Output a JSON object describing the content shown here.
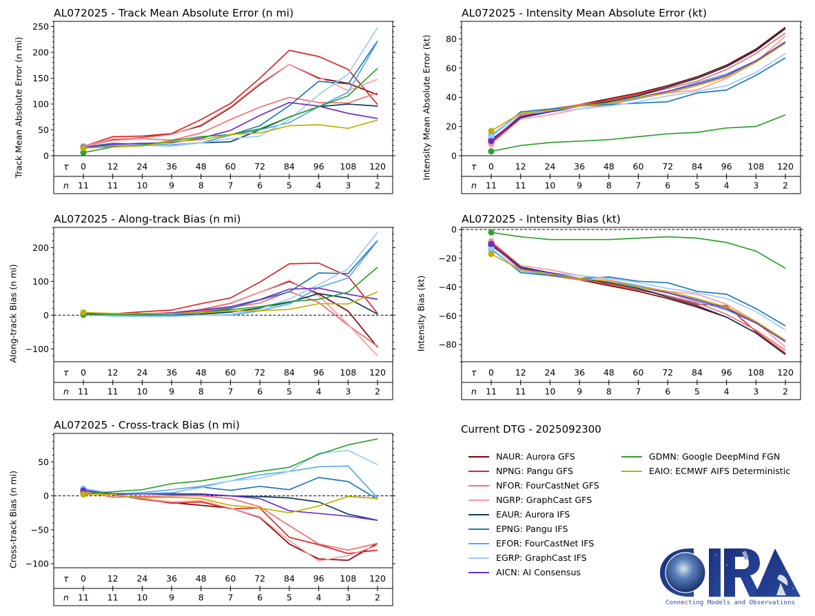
{
  "models": [
    {
      "code": "NAUR",
      "label": "NAUR: Aurora GFS",
      "color": "#7f0000"
    },
    {
      "code": "NPNG",
      "label": "NPNG: Pangu GFS",
      "color": "#d62728"
    },
    {
      "code": "NFOR",
      "label": "NFOR: FourCastNet GFS",
      "color": "#f46d6d"
    },
    {
      "code": "NGRP",
      "label": "NGRP: GraphCast GFS",
      "color": "#ff9999"
    },
    {
      "code": "EAUR",
      "label": "EAUR: Aurora IFS",
      "color": "#0b3c5d"
    },
    {
      "code": "EPNG",
      "label": "EPNG: Pangu IFS",
      "color": "#1f77b4"
    },
    {
      "code": "EFOR",
      "label": "EFOR: FourCastNet IFS",
      "color": "#56a8f0"
    },
    {
      "code": "EGRP",
      "label": "EGRP: GraphCast IFS",
      "color": "#9ccbfa"
    },
    {
      "code": "AICN",
      "label": "AICN: AI Consensus",
      "color": "#6a2fc9"
    },
    {
      "code": "GDMN",
      "label": "GDMN: Google DeepMind FGN",
      "color": "#2ca02c"
    },
    {
      "code": "EAIO",
      "label": "EAIO: ECMWF AIFS Deterministic",
      "color": "#c0b000"
    }
  ],
  "legend": {
    "dtg_title": "Current DTG - 2025092300"
  },
  "logo": {
    "name": "CIRA",
    "tagline": "Connecting Models and Observations"
  },
  "chart_data": [
    {
      "id": "track",
      "type": "line",
      "title": "AL072025 - Track Mean Absolute Error (n mi)",
      "ylabel": "Track Mean Absolute Error (n mi)",
      "xlabel": "",
      "tau_label": "τ",
      "n_label": "n",
      "x": [
        0,
        12,
        24,
        36,
        48,
        60,
        72,
        84,
        96,
        108,
        120
      ],
      "n": [
        11,
        11,
        10,
        9,
        8,
        7,
        6,
        5,
        4,
        3,
        2
      ],
      "ylim": [
        0,
        260
      ],
      "yticks": [
        0,
        50,
        100,
        150,
        200,
        250
      ],
      "yticklabels": [
        "0",
        "50",
        "100",
        "150",
        "200",
        "250"
      ],
      "zero_line": false,
      "series": [
        {
          "name": "NAUR",
          "values": [
            18,
            32,
            35,
            42,
            58,
            93,
            138,
            177,
            150,
            140,
            118
          ]
        },
        {
          "name": "NPNG",
          "values": [
            18,
            37,
            38,
            43,
            70,
            101,
            150,
            204,
            192,
            167,
            99
          ]
        },
        {
          "name": "NFOR",
          "values": [
            18,
            30,
            33,
            30,
            44,
            70,
            94,
            113,
            103,
            102,
            122
          ]
        },
        {
          "name": "NGRP",
          "values": [
            18,
            33,
            34,
            41,
            60,
            95,
            140,
            177,
            152,
            126,
            148
          ]
        },
        {
          "name": "EAUR",
          "values": [
            15,
            19,
            20,
            21,
            25,
            27,
            50,
            75,
            95,
            100,
            96
          ]
        },
        {
          "name": "EPNG",
          "values": [
            17,
            24,
            22,
            21,
            25,
            40,
            58,
            97,
            144,
            139,
            222
          ]
        },
        {
          "name": "EFOR",
          "values": [
            16,
            20,
            20,
            19,
            25,
            40,
            50,
            64,
            95,
            123,
            221
          ]
        },
        {
          "name": "EGRP",
          "values": [
            17,
            21,
            21,
            20,
            25,
            33,
            38,
            70,
            118,
            158,
            248
          ]
        },
        {
          "name": "AICN",
          "values": [
            16,
            22,
            24,
            25,
            34,
            49,
            78,
            103,
            96,
            82,
            72
          ]
        },
        {
          "name": "GDMN",
          "values": [
            6,
            17,
            20,
            29,
            37,
            41,
            52,
            75,
            95,
            116,
            169
          ]
        },
        {
          "name": "EAIO",
          "values": [
            15,
            17,
            19,
            27,
            31,
            41,
            44,
            58,
            60,
            53,
            69
          ]
        }
      ]
    },
    {
      "id": "intensity",
      "type": "line",
      "title": "AL072025 - Intensity Mean Absolute Error (kt)",
      "ylabel": "Intensity Mean Absolute Error (kt)",
      "xlabel": "",
      "tau_label": "τ",
      "n_label": "n",
      "x": [
        0,
        12,
        24,
        36,
        48,
        60,
        72,
        84,
        96,
        108,
        120
      ],
      "n": [
        11,
        11,
        10,
        9,
        8,
        7,
        6,
        5,
        4,
        3,
        2
      ],
      "ylim": [
        0,
        92
      ],
      "yticks": [
        0,
        20,
        40,
        60,
        80
      ],
      "yticklabels": [
        "0",
        "20",
        "40",
        "60",
        "80"
      ],
      "zero_line": false,
      "series": [
        {
          "name": "NAUR",
          "values": [
            9,
            26,
            31,
            35,
            39,
            43,
            48,
            54,
            62,
            73,
            88
          ]
        },
        {
          "name": "NPNG",
          "values": [
            9,
            27,
            31,
            35,
            38,
            42,
            47,
            53,
            61,
            72,
            87
          ]
        },
        {
          "name": "NFOR",
          "values": [
            10,
            28,
            32,
            35,
            37,
            41,
            46,
            51,
            59,
            70,
            84
          ]
        },
        {
          "name": "NGRP",
          "values": [
            8,
            25,
            28,
            32,
            35,
            39,
            43,
            45,
            53,
            64,
            82
          ]
        },
        {
          "name": "EAUR",
          "values": [
            11,
            26,
            30,
            34,
            37,
            41,
            47,
            53,
            61,
            72,
            87
          ]
        },
        {
          "name": "EPNG",
          "values": [
            13,
            30,
            32,
            34,
            35,
            36,
            37,
            43,
            45,
            55,
            67
          ]
        },
        {
          "name": "EFOR",
          "values": [
            14,
            29,
            31,
            34,
            36,
            39,
            44,
            50,
            56,
            65,
            77
          ]
        },
        {
          "name": "EGRP",
          "values": [
            13,
            29,
            30,
            32,
            34,
            37,
            41,
            44,
            48,
            57,
            70
          ]
        },
        {
          "name": "AICN",
          "values": [
            10,
            27,
            30,
            34,
            36,
            40,
            44,
            49,
            55,
            65,
            78
          ]
        },
        {
          "name": "GDMN",
          "values": [
            3,
            7,
            9,
            10,
            11,
            13,
            15,
            16,
            19,
            20,
            28
          ]
        },
        {
          "name": "EAIO",
          "values": [
            17,
            29,
            31,
            34,
            36,
            40,
            43,
            48,
            54,
            64,
            77
          ]
        }
      ]
    },
    {
      "id": "along",
      "type": "line",
      "title": "AL072025 - Along-track Bias (n mi)",
      "ylabel": "Along-track Bias (n mi)",
      "xlabel": "",
      "tau_label": "τ",
      "n_label": "n",
      "x": [
        0,
        12,
        24,
        36,
        48,
        60,
        72,
        84,
        96,
        108,
        120
      ],
      "n": [
        11,
        11,
        10,
        9,
        8,
        7,
        6,
        5,
        4,
        3,
        2
      ],
      "ylim": [
        -138,
        260
      ],
      "yticks": [
        -100,
        0,
        100,
        200
      ],
      "yticklabels": [
        "−100",
        "0",
        "100",
        "200"
      ],
      "zero_line": true,
      "series": [
        {
          "name": "NAUR",
          "values": [
            6,
            3,
            4,
            7,
            17,
            35,
            68,
            100,
            63,
            12,
            -95
          ]
        },
        {
          "name": "NPNG",
          "values": [
            6,
            4,
            10,
            15,
            34,
            51,
            98,
            152,
            154,
            115,
            5
          ]
        },
        {
          "name": "NFOR",
          "values": [
            5,
            2,
            4,
            6,
            12,
            22,
            36,
            70,
            38,
            -30,
            -92
          ]
        },
        {
          "name": "NGRP",
          "values": [
            6,
            3,
            5,
            7,
            18,
            36,
            68,
            103,
            58,
            -28,
            -120
          ]
        },
        {
          "name": "EAUR",
          "values": [
            3,
            -2,
            -2,
            -2,
            3,
            9,
            21,
            38,
            64,
            50,
            3
          ]
        },
        {
          "name": "EPNG",
          "values": [
            4,
            0,
            0,
            0,
            8,
            20,
            45,
            69,
            125,
            123,
            221
          ]
        },
        {
          "name": "EFOR",
          "values": [
            4,
            -3,
            -4,
            -4,
            0,
            0,
            13,
            33,
            82,
            110,
            220
          ]
        },
        {
          "name": "EGRP",
          "values": [
            5,
            -2,
            -3,
            -3,
            0,
            2,
            18,
            48,
            90,
            137,
            245
          ]
        },
        {
          "name": "AICN",
          "values": [
            5,
            2,
            4,
            7,
            15,
            25,
            46,
            77,
            80,
            62,
            47
          ]
        },
        {
          "name": "GDMN",
          "values": [
            1,
            2,
            3,
            4,
            8,
            16,
            25,
            40,
            47,
            68,
            142
          ]
        },
        {
          "name": "EAIO",
          "values": [
            8,
            5,
            5,
            5,
            7,
            12,
            13,
            17,
            34,
            33,
            69
          ]
        }
      ]
    },
    {
      "id": "intbias",
      "type": "line",
      "title": "AL072025 - Intensity Bias (kt)",
      "ylabel": "Intensity Bias (kt)",
      "xlabel": "",
      "tau_label": "τ",
      "n_label": "n",
      "x": [
        0,
        12,
        24,
        36,
        48,
        60,
        72,
        84,
        96,
        108,
        120
      ],
      "n": [
        11,
        11,
        10,
        9,
        8,
        7,
        6,
        5,
        4,
        3,
        2
      ],
      "ylim": [
        -92,
        1.5
      ],
      "yticks": [
        -80,
        -60,
        -40,
        -20,
        0
      ],
      "yticklabels": [
        "−80",
        "−60",
        "−40",
        "−20",
        "0"
      ],
      "zero_line": true,
      "series": [
        {
          "name": "NAUR",
          "values": [
            -9,
            -26,
            -31,
            -35,
            -39,
            -43,
            -48,
            -54,
            -61,
            -72,
            -87
          ]
        },
        {
          "name": "NPNG",
          "values": [
            -9,
            -27,
            -31,
            -34,
            -38,
            -42,
            -46,
            -52,
            -53,
            -71,
            -86
          ]
        },
        {
          "name": "NFOR",
          "values": [
            -10,
            -28,
            -32,
            -35,
            -37,
            -41,
            -46,
            -51,
            -59,
            -70,
            -84
          ]
        },
        {
          "name": "NGRP",
          "values": [
            -8,
            -25,
            -28,
            -32,
            -35,
            -39,
            -43,
            -45,
            -52,
            -64,
            -82
          ]
        },
        {
          "name": "EAUR",
          "values": [
            -11,
            -26,
            -30,
            -34,
            -37,
            -41,
            -47,
            -53,
            -61,
            -72,
            -87
          ]
        },
        {
          "name": "EPNG",
          "values": [
            -13,
            -30,
            -32,
            -34,
            -33,
            -36,
            -37,
            -43,
            -45,
            -55,
            -67
          ]
        },
        {
          "name": "EFOR",
          "values": [
            -14,
            -29,
            -31,
            -34,
            -36,
            -39,
            -44,
            -50,
            -56,
            -65,
            -77
          ]
        },
        {
          "name": "EGRP",
          "values": [
            -13,
            -29,
            -30,
            -32,
            -34,
            -37,
            -41,
            -44,
            -48,
            -57,
            -70
          ]
        },
        {
          "name": "AICN",
          "values": [
            -10,
            -27,
            -30,
            -34,
            -36,
            -40,
            -44,
            -49,
            -55,
            -65,
            -78
          ]
        },
        {
          "name": "GDMN",
          "values": [
            -2,
            -5,
            -7,
            -7,
            -7,
            -6,
            -5,
            -6,
            -9,
            -15,
            -27
          ]
        },
        {
          "name": "EAIO",
          "values": [
            -17,
            -28,
            -31,
            -34,
            -36,
            -40,
            -43,
            -48,
            -54,
            -64,
            -77
          ]
        }
      ]
    },
    {
      "id": "cross",
      "type": "line",
      "title": "AL072025 - Cross-track Bias (n mi)",
      "ylabel": "Cross-track Bias (n mi)",
      "xlabel": "",
      "tau_label": "τ",
      "n_label": "n",
      "x": [
        0,
        12,
        24,
        36,
        48,
        60,
        72,
        84,
        96,
        108,
        120
      ],
      "n": [
        11,
        11,
        10,
        9,
        8,
        7,
        6,
        5,
        4,
        3,
        2
      ],
      "ylim": [
        -106,
        92
      ],
      "yticks": [
        -100,
        -50,
        0,
        50
      ],
      "yticklabels": [
        "−100",
        "−50",
        "0",
        "50"
      ],
      "zero_line": true,
      "series": [
        {
          "name": "NAUR",
          "values": [
            5,
            2,
            -5,
            -10,
            -14,
            -18,
            -32,
            -71,
            -93,
            -95,
            -70
          ]
        },
        {
          "name": "NPNG",
          "values": [
            5,
            2,
            -4,
            -11,
            -9,
            -19,
            -18,
            -61,
            -72,
            -85,
            -80
          ]
        },
        {
          "name": "NFOR",
          "values": [
            6,
            -2,
            -1,
            0,
            0,
            -4,
            -16,
            -44,
            -71,
            -80,
            -70
          ]
        },
        {
          "name": "NGRP",
          "values": [
            6,
            2,
            -4,
            -9,
            -7,
            -18,
            -31,
            -66,
            -96,
            -88,
            -73
          ]
        },
        {
          "name": "EAUR",
          "values": [
            8,
            2,
            3,
            2,
            2,
            0,
            -1,
            -3,
            -9,
            -27,
            -36
          ]
        },
        {
          "name": "EPNG",
          "values": [
            9,
            2,
            3,
            4,
            13,
            8,
            14,
            9,
            27,
            21,
            -5
          ]
        },
        {
          "name": "EFOR",
          "values": [
            10,
            3,
            5,
            9,
            14,
            22,
            31,
            36,
            43,
            44,
            -3
          ]
        },
        {
          "name": "EGRP",
          "values": [
            11,
            4,
            4,
            5,
            12,
            22,
            26,
            36,
            63,
            67,
            46
          ]
        },
        {
          "name": "AICN",
          "values": [
            8,
            3,
            3,
            3,
            3,
            0,
            -4,
            -22,
            -26,
            -30,
            -36
          ]
        },
        {
          "name": "GDMN",
          "values": [
            3,
            6,
            9,
            18,
            22,
            29,
            36,
            42,
            61,
            75,
            84
          ]
        },
        {
          "name": "EAIO",
          "values": [
            2,
            2,
            -3,
            -2,
            -4,
            -14,
            -18,
            -25,
            -15,
            -1,
            -4
          ]
        }
      ]
    }
  ]
}
